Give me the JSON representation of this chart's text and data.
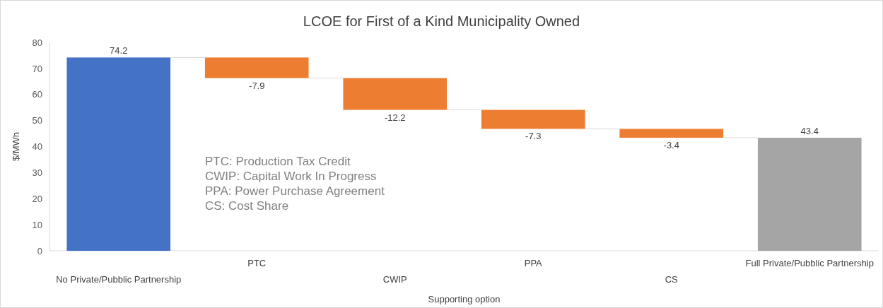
{
  "chart_data": {
    "type": "bar",
    "title": "LCOE for First of a Kind Municipality Owned",
    "xlabel": "Supporting option",
    "ylabel": "$/MWh",
    "categories": [
      "No Private/Pubblic Partnership",
      "PTC",
      "CWIP",
      "PPA",
      "CS",
      "Full Private/Pubblic Partnership"
    ],
    "values": [
      74.2,
      -7.9,
      -12.2,
      -7.3,
      -3.4,
      43.4
    ],
    "base": [
      0,
      74.2,
      66.3,
      54.1,
      46.8,
      0
    ],
    "colors": [
      "#4472c4",
      "#ed7d31",
      "#ed7d31",
      "#ed7d31",
      "#ed7d31",
      "#a5a5a5"
    ],
    "ylim": [
      0,
      80
    ],
    "yticks": [
      0,
      10,
      20,
      30,
      40,
      50,
      60,
      70,
      80
    ],
    "grid": false,
    "data_labels": true,
    "annotations": [
      "PTC: Production Tax Credit",
      "CWIP: Capital Work In Progress",
      "PPA: Power Purchase Agreement",
      "CS: Cost Share"
    ]
  }
}
